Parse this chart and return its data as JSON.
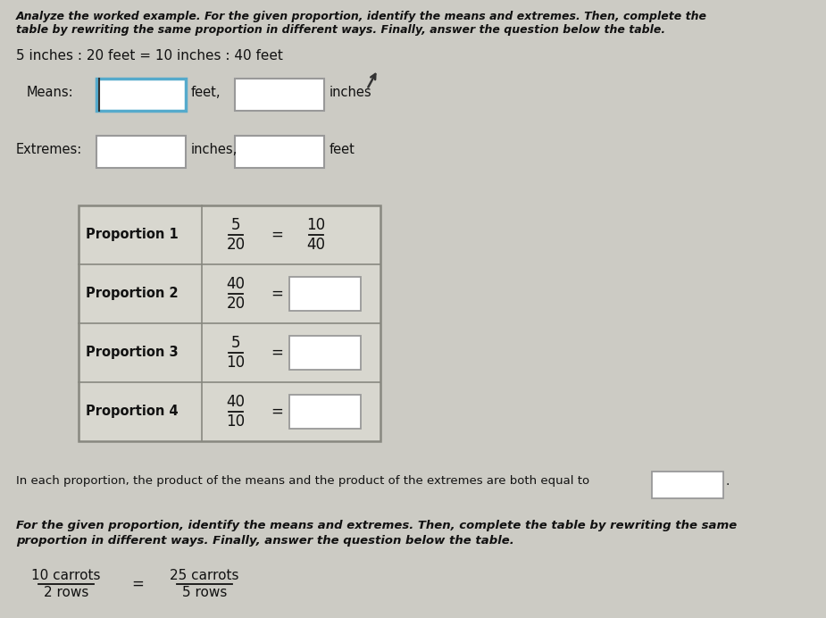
{
  "bg_color": "#cccbc4",
  "title_line1": "Analyze the worked example. For the given proportion, identify the means and extremes. Then, complete the",
  "title_line2": "table by rewriting the same proportion in different ways. Finally, answer the question below the table.",
  "proportion_text": "5 inches : 20 feet = 10 inches : 40 feet",
  "means_label": "Means:",
  "extremes_label": "Extremes:",
  "means_suffix1": "feet,",
  "means_suffix2": "inches",
  "extremes_suffix1": "inches,",
  "extremes_suffix2": "feet",
  "prop_labels": [
    "Proportion 1",
    "Proportion 2",
    "Proportion 3",
    "Proportion 4"
  ],
  "bottom_text1": "In each proportion, the product of the means and the product of the extremes are both equal to",
  "bottom_text2": "For the given proportion, identify the means and extremes. Then, complete the table by rewriting the same",
  "bottom_text3": "proportion in different ways. Finally, answer the question below the table.",
  "carrot_prop_num": "10 carrots",
  "carrot_prop_den1": "2 rows",
  "carrot_prop_num2": "25 carrots",
  "carrot_prop_den2": "5 rows",
  "box_border": "#999999",
  "means_box1_border": "#55aacc",
  "table_bg": "#d8d7cf",
  "table_border": "#888880",
  "text_color": "#1a1a1a"
}
